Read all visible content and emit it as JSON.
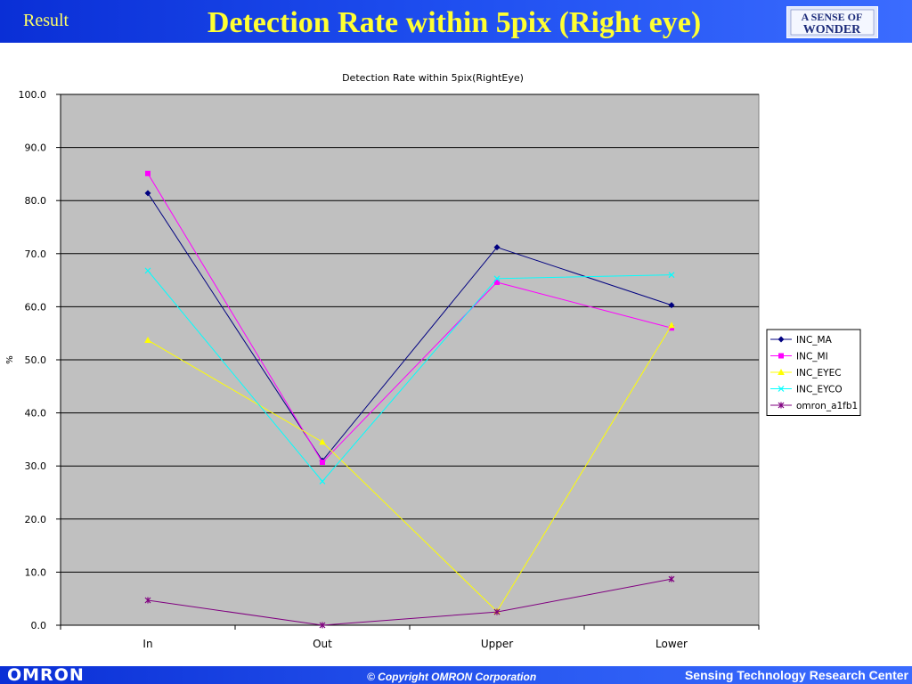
{
  "header": {
    "section": "Result",
    "title": "Detection Rate within 5pix (Right eye)",
    "logo_line1": "A SENSE OF",
    "logo_line2": "WONDER"
  },
  "footer": {
    "brand": "OMRON",
    "copyright": "© Copyright OMRON Corporation",
    "center": "Sensing Technology Research Center"
  },
  "colors": {
    "header_bg": "#1f4ff0",
    "title_text": "#ffff33",
    "plot_bg": "#c0c0c0"
  },
  "chart_data": {
    "type": "line",
    "title": "Detection Rate within 5pix(RightEye)",
    "xlabel": "",
    "ylabel": "%",
    "categories": [
      "In",
      "Out",
      "Upper",
      "Lower"
    ],
    "ylim": [
      0,
      100
    ],
    "yticks": [
      "0.0",
      "10.0",
      "20.0",
      "30.0",
      "40.0",
      "50.0",
      "60.0",
      "70.0",
      "80.0",
      "90.0",
      "100.0"
    ],
    "grid": true,
    "legend": "right",
    "series": [
      {
        "name": "INC_MA",
        "color": "#000080",
        "marker": "diamond",
        "values": [
          81.4,
          31.0,
          71.2,
          60.3
        ]
      },
      {
        "name": "INC_MI",
        "color": "#ff00ff",
        "marker": "square",
        "values": [
          85.1,
          30.7,
          64.6,
          56.0
        ]
      },
      {
        "name": "INC_EYEC",
        "color": "#ffff00",
        "marker": "triangle",
        "values": [
          53.7,
          34.5,
          2.6,
          56.5
        ]
      },
      {
        "name": "INC_EYCO",
        "color": "#00ffff",
        "marker": "x",
        "values": [
          66.8,
          27.1,
          65.3,
          66.0
        ]
      },
      {
        "name": "omron_a1fb1",
        "color": "#800080",
        "marker": "star",
        "values": [
          4.7,
          0.0,
          2.5,
          8.7
        ]
      }
    ]
  }
}
